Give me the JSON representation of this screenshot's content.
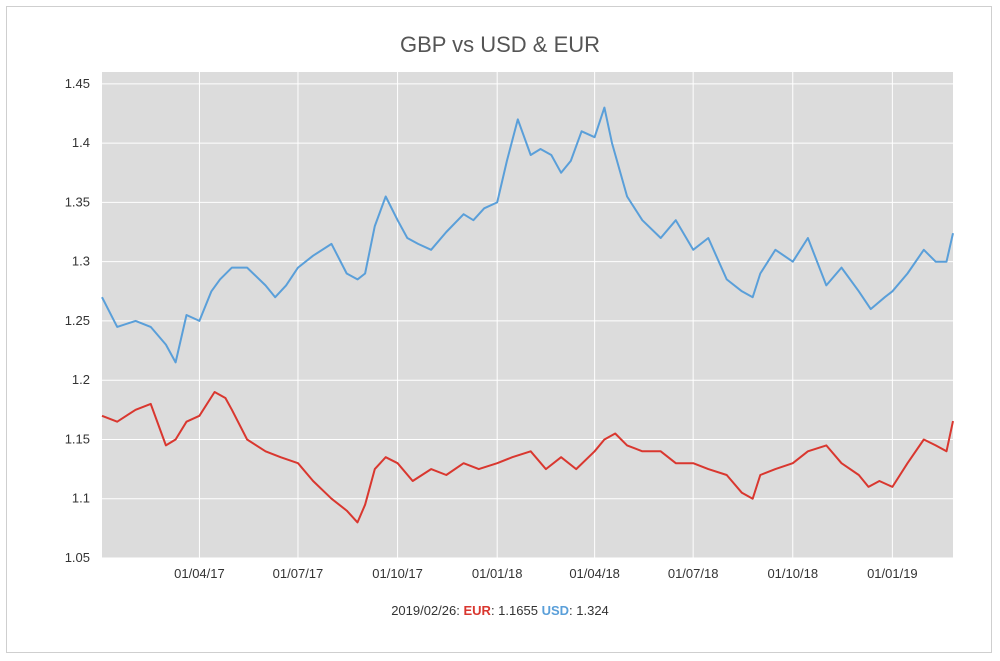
{
  "colors": {
    "plot_background": "#dcdcdc",
    "grid": "#ffffff",
    "eur": "#d9372f",
    "usd": "#5a9fd9"
  },
  "readout": {
    "date": "2019/02/26:",
    "eur_label": "EUR",
    "eur_value": ": 1.1655",
    "usd_label": "USD",
    "usd_value": ": 1.324"
  },
  "chart_data": {
    "type": "line",
    "title": "GBP vs USD & EUR",
    "xlabel": "",
    "ylabel": "",
    "ylim": [
      1.05,
      1.46
    ],
    "xlim": [
      "2017-01-01",
      "2019-02-26"
    ],
    "yticks": [
      "1.05",
      "1.1",
      "1.15",
      "1.2",
      "1.25",
      "1.3",
      "1.35",
      "1.4",
      "1.45"
    ],
    "xticks": [
      {
        "date": "2017-04-01",
        "label": "01/04/17"
      },
      {
        "date": "2017-07-01",
        "label": "01/07/17"
      },
      {
        "date": "2017-10-01",
        "label": "01/10/17"
      },
      {
        "date": "2018-01-01",
        "label": "01/01/18"
      },
      {
        "date": "2018-04-01",
        "label": "01/04/18"
      },
      {
        "date": "2018-07-01",
        "label": "01/07/18"
      },
      {
        "date": "2018-10-01",
        "label": "01/10/18"
      },
      {
        "date": "2019-01-01",
        "label": "01/01/19"
      }
    ],
    "grid": true,
    "series": [
      {
        "name": "USD",
        "color": "#5a9fd9",
        "x": [
          "2017-01-01",
          "2017-01-15",
          "2017-02-01",
          "2017-02-15",
          "2017-03-01",
          "2017-03-10",
          "2017-03-20",
          "2017-04-01",
          "2017-04-12",
          "2017-04-20",
          "2017-05-01",
          "2017-05-15",
          "2017-06-01",
          "2017-06-10",
          "2017-06-20",
          "2017-07-01",
          "2017-07-15",
          "2017-08-01",
          "2017-08-15",
          "2017-08-25",
          "2017-09-01",
          "2017-09-10",
          "2017-09-20",
          "2017-10-01",
          "2017-10-10",
          "2017-10-20",
          "2017-11-01",
          "2017-11-15",
          "2017-12-01",
          "2017-12-10",
          "2017-12-20",
          "2018-01-01",
          "2018-01-10",
          "2018-01-20",
          "2018-02-01",
          "2018-02-10",
          "2018-02-20",
          "2018-03-01",
          "2018-03-10",
          "2018-03-20",
          "2018-04-01",
          "2018-04-10",
          "2018-04-17",
          "2018-05-01",
          "2018-05-15",
          "2018-06-01",
          "2018-06-15",
          "2018-07-01",
          "2018-07-15",
          "2018-08-01",
          "2018-08-15",
          "2018-08-25",
          "2018-09-01",
          "2018-09-15",
          "2018-10-01",
          "2018-10-15",
          "2018-11-01",
          "2018-11-15",
          "2018-12-01",
          "2018-12-12",
          "2018-12-25",
          "2019-01-01",
          "2019-01-15",
          "2019-01-30",
          "2019-02-10",
          "2019-02-20",
          "2019-02-26"
        ],
        "values": [
          1.27,
          1.245,
          1.25,
          1.245,
          1.23,
          1.215,
          1.255,
          1.25,
          1.275,
          1.285,
          1.295,
          1.295,
          1.28,
          1.27,
          1.28,
          1.295,
          1.305,
          1.315,
          1.29,
          1.285,
          1.29,
          1.33,
          1.355,
          1.335,
          1.32,
          1.315,
          1.31,
          1.325,
          1.34,
          1.335,
          1.345,
          1.35,
          1.385,
          1.42,
          1.39,
          1.395,
          1.39,
          1.375,
          1.385,
          1.41,
          1.405,
          1.43,
          1.4,
          1.355,
          1.335,
          1.32,
          1.335,
          1.31,
          1.32,
          1.285,
          1.275,
          1.27,
          1.29,
          1.31,
          1.3,
          1.32,
          1.28,
          1.295,
          1.275,
          1.26,
          1.27,
          1.275,
          1.29,
          1.31,
          1.3,
          1.3,
          1.324
        ]
      },
      {
        "name": "EUR",
        "color": "#d9372f",
        "x": [
          "2017-01-01",
          "2017-01-15",
          "2017-02-01",
          "2017-02-15",
          "2017-03-01",
          "2017-03-10",
          "2017-03-20",
          "2017-04-01",
          "2017-04-15",
          "2017-04-25",
          "2017-05-01",
          "2017-05-15",
          "2017-06-01",
          "2017-06-15",
          "2017-07-01",
          "2017-07-15",
          "2017-08-01",
          "2017-08-15",
          "2017-08-25",
          "2017-09-01",
          "2017-09-10",
          "2017-09-20",
          "2017-10-01",
          "2017-10-15",
          "2017-11-01",
          "2017-11-15",
          "2017-12-01",
          "2017-12-15",
          "2018-01-01",
          "2018-01-15",
          "2018-02-01",
          "2018-02-15",
          "2018-03-01",
          "2018-03-15",
          "2018-04-01",
          "2018-04-10",
          "2018-04-20",
          "2018-05-01",
          "2018-05-15",
          "2018-06-01",
          "2018-06-15",
          "2018-07-01",
          "2018-07-15",
          "2018-08-01",
          "2018-08-15",
          "2018-08-25",
          "2018-09-01",
          "2018-09-15",
          "2018-10-01",
          "2018-10-15",
          "2018-11-01",
          "2018-11-15",
          "2018-12-01",
          "2018-12-10",
          "2018-12-20",
          "2019-01-01",
          "2019-01-15",
          "2019-01-30",
          "2019-02-10",
          "2019-02-20",
          "2019-02-26"
        ],
        "values": [
          1.17,
          1.165,
          1.175,
          1.18,
          1.145,
          1.15,
          1.165,
          1.17,
          1.19,
          1.185,
          1.175,
          1.15,
          1.14,
          1.135,
          1.13,
          1.115,
          1.1,
          1.09,
          1.08,
          1.095,
          1.125,
          1.135,
          1.13,
          1.115,
          1.125,
          1.12,
          1.13,
          1.125,
          1.13,
          1.135,
          1.14,
          1.125,
          1.135,
          1.125,
          1.14,
          1.15,
          1.155,
          1.145,
          1.14,
          1.14,
          1.13,
          1.13,
          1.125,
          1.12,
          1.105,
          1.1,
          1.12,
          1.125,
          1.13,
          1.14,
          1.145,
          1.13,
          1.12,
          1.11,
          1.115,
          1.11,
          1.13,
          1.15,
          1.145,
          1.14,
          1.1655
        ]
      }
    ]
  }
}
